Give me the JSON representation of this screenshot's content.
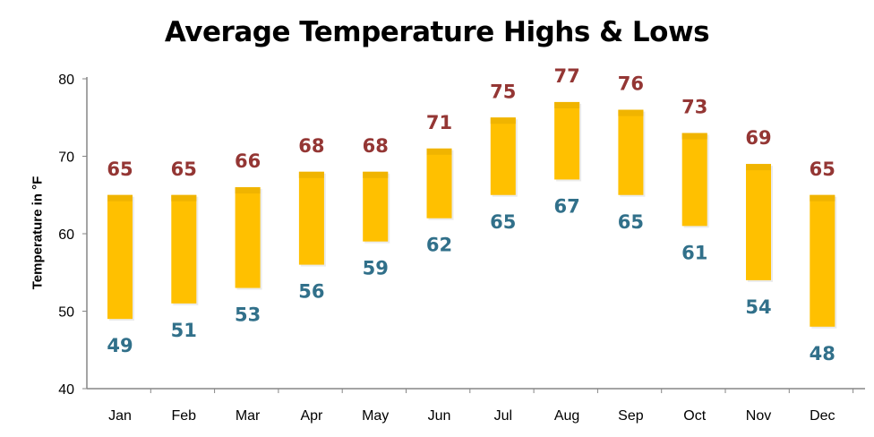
{
  "chart_data": {
    "type": "bar",
    "subtype": "floating-range",
    "title": "Average Temperature Highs & Lows",
    "xlabel": "",
    "ylabel": "Temperature in °F",
    "ylim": [
      40,
      80
    ],
    "yticks": [
      40,
      50,
      60,
      70,
      80
    ],
    "grid": false,
    "categories": [
      "Jan",
      "Feb",
      "Mar",
      "Apr",
      "May",
      "Jun",
      "Jul",
      "Aug",
      "Sep",
      "Oct",
      "Nov",
      "Dec"
    ],
    "series": [
      {
        "key": "high",
        "values": [
          65,
          65,
          66,
          68,
          68,
          71,
          75,
          77,
          76,
          73,
          69,
          65
        ]
      },
      {
        "key": "low",
        "values": [
          49,
          51,
          53,
          56,
          59,
          62,
          65,
          67,
          65,
          61,
          54,
          48
        ]
      }
    ],
    "colors": {
      "bar": "#FFC000",
      "bar_cap": "#F0B400",
      "high_label": "#943634",
      "low_label": "#31708A",
      "axis": "#868686"
    }
  }
}
